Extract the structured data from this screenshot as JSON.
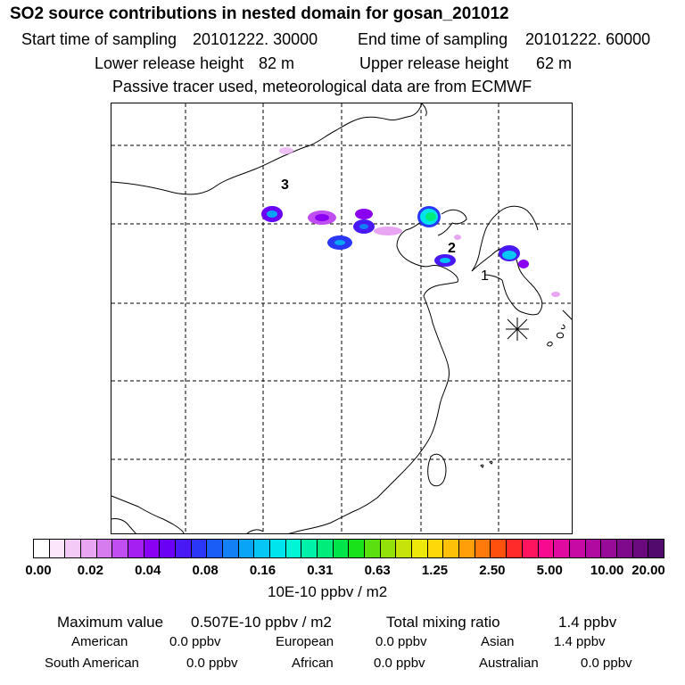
{
  "title": "SO2 source contributions in nested domain for gosan_201012",
  "header": {
    "start_label": "Start time of sampling",
    "start_value": "20101222. 30000",
    "end_label": "End time of sampling",
    "end_value": "20101222. 60000",
    "lower_label": "Lower release height",
    "lower_value": "82 m",
    "upper_label": "Upper release height",
    "upper_value": "62 m",
    "note": "Passive tracer used, meteorological data are from ECMWF"
  },
  "map": {
    "markers": [
      {
        "label": "1"
      },
      {
        "label": "2"
      },
      {
        "label": "3"
      }
    ]
  },
  "colorbar": {
    "ticks": [
      "0.00",
      "0.02",
      "0.04",
      "0.08",
      "0.16",
      "0.31",
      "0.63",
      "1.25",
      "2.50",
      "5.00",
      "10.00",
      "20.00"
    ],
    "colors": [
      "#ffffff",
      "#fbe6fb",
      "#f3c9f6",
      "#e8a6f2",
      "#d77cee",
      "#c14ef0",
      "#a61ff2",
      "#8a00f3",
      "#6a00f5",
      "#4818f5",
      "#2a37f6",
      "#1a5cf6",
      "#1380f6",
      "#0aa4f6",
      "#05c6f4",
      "#00e4ee",
      "#00f5d7",
      "#00f2a8",
      "#00ec7a",
      "#00e64a",
      "#1ae21a",
      "#5ae00e",
      "#92e20a",
      "#c6e40a",
      "#ede80a",
      "#ffd80a",
      "#ffc00a",
      "#ffa00a",
      "#ff7a0a",
      "#ff500e",
      "#ff2a2a",
      "#ff1460",
      "#f70a90",
      "#e00aa0",
      "#c80aa4",
      "#b00aa0",
      "#980a98",
      "#800a8c",
      "#6a0a7e",
      "#520a6c"
    ],
    "unit": "10E-10 ppbv / m2"
  },
  "summary": {
    "max_label": "Maximum value",
    "max_value": "0.507E-10 ppbv / m2",
    "total_label": "Total mixing ratio",
    "total_value": "1.4 ppbv",
    "regions": [
      {
        "name": "American",
        "value": "0.0 ppbv"
      },
      {
        "name": "European",
        "value": "0.0 ppbv"
      },
      {
        "name": "Asian",
        "value": "1.4 ppbv"
      },
      {
        "name": "South American",
        "value": "0.0 ppbv"
      },
      {
        "name": "African",
        "value": "0.0 ppbv"
      },
      {
        "name": "Australian",
        "value": "0.0 ppbv"
      }
    ]
  }
}
